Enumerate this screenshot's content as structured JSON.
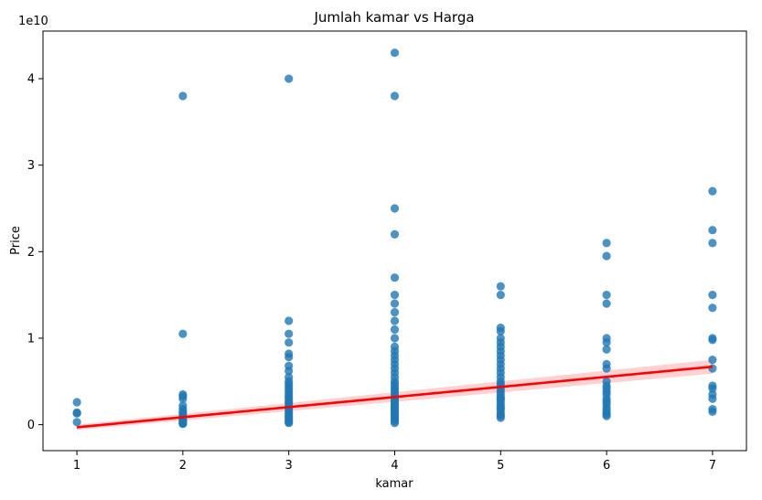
{
  "chart_data": {
    "type": "scatter",
    "title": "Jumlah kamar vs Harga",
    "xlabel": "kamar",
    "ylabel": "Price",
    "y_offset_label": "1e10",
    "xlim": [
      0.68,
      7.32
    ],
    "ylim": [
      -0.3,
      4.55
    ],
    "x_ticks": [
      1,
      2,
      3,
      4,
      5,
      6,
      7
    ],
    "y_ticks": [
      0,
      1,
      2,
      3,
      4
    ],
    "grid": false,
    "point_color": "#1f77b4",
    "line_color": "#ff0000",
    "band_color": "#ffb3b3",
    "regression": {
      "x": [
        1,
        7
      ],
      "y": [
        -0.03,
        0.67
      ],
      "ci_halfwidth": [
        0.03,
        0.08
      ]
    },
    "points": [
      {
        "x": 1,
        "y": [
          0.26,
          0.14,
          0.13,
          0.03
        ]
      },
      {
        "x": 2,
        "y": [
          3.8,
          1.05,
          0.35,
          0.33,
          0.3,
          0.22,
          0.18,
          0.15,
          0.13,
          0.1,
          0.08,
          0.06,
          0.05,
          0.04,
          0.03,
          0.02,
          0.015,
          0.01
        ]
      },
      {
        "x": 3,
        "y": [
          4.0,
          1.2,
          1.05,
          0.95,
          0.82,
          0.78,
          0.68,
          0.62,
          0.55,
          0.5,
          0.47,
          0.44,
          0.41,
          0.38,
          0.35,
          0.32,
          0.3,
          0.27,
          0.25,
          0.22,
          0.2,
          0.18,
          0.15,
          0.13,
          0.11,
          0.09,
          0.07,
          0.05,
          0.03,
          0.02
        ]
      },
      {
        "x": 4,
        "y": [
          4.3,
          3.8,
          2.5,
          2.2,
          1.7,
          1.5,
          1.4,
          1.3,
          1.2,
          1.1,
          1.0,
          0.9,
          0.85,
          0.8,
          0.75,
          0.7,
          0.65,
          0.6,
          0.55,
          0.5,
          0.47,
          0.44,
          0.41,
          0.38,
          0.35,
          0.32,
          0.3,
          0.28,
          0.26,
          0.24,
          0.22,
          0.2,
          0.18,
          0.16,
          0.14,
          0.12,
          0.1,
          0.08,
          0.06,
          0.04,
          0.02
        ]
      },
      {
        "x": 5,
        "y": [
          1.6,
          1.5,
          1.12,
          1.08,
          1.0,
          0.95,
          0.9,
          0.85,
          0.8,
          0.75,
          0.7,
          0.65,
          0.6,
          0.55,
          0.5,
          0.47,
          0.44,
          0.41,
          0.38,
          0.35,
          0.32,
          0.3,
          0.28,
          0.25,
          0.22,
          0.2,
          0.18,
          0.15,
          0.12,
          0.1,
          0.08
        ]
      },
      {
        "x": 6,
        "y": [
          2.1,
          1.95,
          1.5,
          1.4,
          1.0,
          0.95,
          0.87,
          0.7,
          0.65,
          0.5,
          0.45,
          0.42,
          0.38,
          0.35,
          0.3,
          0.27,
          0.24,
          0.2,
          0.17,
          0.14,
          0.12,
          0.1
        ]
      },
      {
        "x": 7,
        "y": [
          2.7,
          2.25,
          2.1,
          1.5,
          1.35,
          1.0,
          0.98,
          0.75,
          0.65,
          0.45,
          0.42,
          0.35,
          0.3,
          0.18,
          0.15
        ]
      }
    ]
  }
}
